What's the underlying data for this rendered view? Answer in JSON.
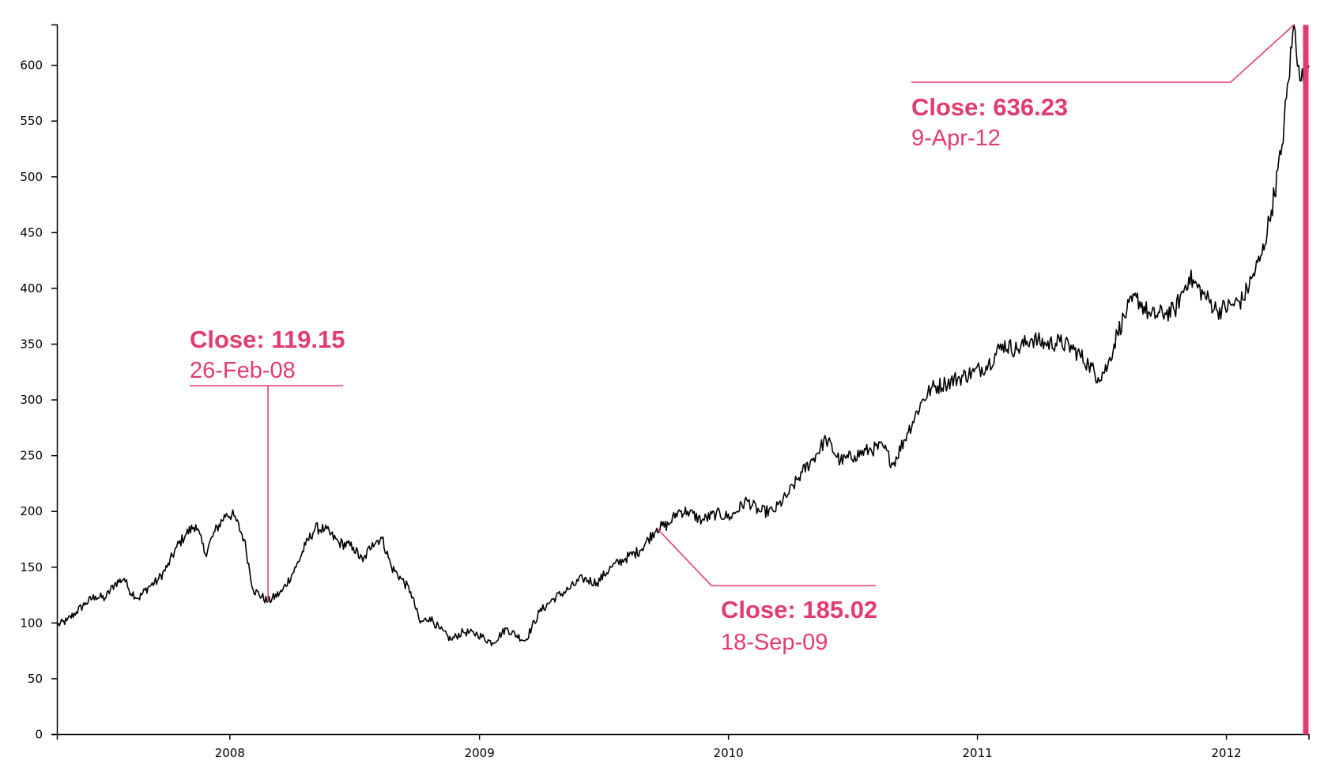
{
  "chart_data": {
    "type": "line",
    "title": "",
    "xlabel": "",
    "ylabel": "",
    "ylim": [
      0,
      636.23
    ],
    "xlim": [
      "2007-04-23",
      "2012-05-01"
    ],
    "grid": false,
    "y_ticks": [
      "0",
      "50",
      "100",
      "150",
      "200",
      "250",
      "300",
      "350",
      "400",
      "450",
      "500",
      "550",
      "600"
    ],
    "x_ticks": [
      {
        "date": "2008-01-01",
        "label": "2008"
      },
      {
        "date": "2009-01-01",
        "label": "2009"
      },
      {
        "date": "2010-01-01",
        "label": "2010"
      },
      {
        "date": "2011-01-01",
        "label": "2011"
      },
      {
        "date": "2012-01-01",
        "label": "2012"
      }
    ],
    "series": [
      {
        "color": "#000000",
        "x": [
          "2007-04-23",
          "2007-05-07",
          "2007-05-21",
          "2007-06-04",
          "2007-06-18",
          "2007-07-02",
          "2007-07-16",
          "2007-07-30",
          "2007-08-06",
          "2007-08-20",
          "2007-09-03",
          "2007-09-17",
          "2007-10-01",
          "2007-10-15",
          "2007-10-29",
          "2007-11-12",
          "2007-11-26",
          "2007-12-10",
          "2007-12-27",
          "2008-01-07",
          "2008-01-22",
          "2008-02-04",
          "2008-02-26",
          "2008-03-17",
          "2008-04-07",
          "2008-04-21",
          "2008-05-05",
          "2008-05-19",
          "2008-06-09",
          "2008-06-30",
          "2008-07-14",
          "2008-07-28",
          "2008-08-11",
          "2008-08-25",
          "2008-09-08",
          "2008-09-22",
          "2008-10-06",
          "2008-10-20",
          "2008-11-03",
          "2008-11-20",
          "2008-12-08",
          "2008-12-29",
          "2009-01-20",
          "2009-02-09",
          "2009-03-09",
          "2009-03-30",
          "2009-04-20",
          "2009-05-11",
          "2009-06-01",
          "2009-06-22",
          "2009-07-13",
          "2009-08-03",
          "2009-08-24",
          "2009-09-18",
          "2009-10-05",
          "2009-10-19",
          "2009-11-02",
          "2009-11-23",
          "2009-12-14",
          "2010-01-04",
          "2010-01-28",
          "2010-02-15",
          "2010-03-08",
          "2010-03-29",
          "2010-04-19",
          "2010-05-06",
          "2010-05-24",
          "2010-06-14",
          "2010-07-05",
          "2010-07-26",
          "2010-08-16",
          "2010-08-30",
          "2010-09-20",
          "2010-10-11",
          "2010-10-25",
          "2010-11-15",
          "2010-12-06",
          "2010-12-27",
          "2011-01-17",
          "2011-02-07",
          "2011-02-28",
          "2011-03-21",
          "2011-04-11",
          "2011-05-02",
          "2011-05-23",
          "2011-06-13",
          "2011-06-27",
          "2011-07-11",
          "2011-07-25",
          "2011-08-08",
          "2011-08-22",
          "2011-09-12",
          "2011-10-03",
          "2011-10-17",
          "2011-11-07",
          "2011-11-28",
          "2011-12-19",
          "2012-01-09",
          "2012-01-25",
          "2012-02-08",
          "2012-02-22",
          "2012-03-07",
          "2012-03-21",
          "2012-04-09",
          "2012-04-16",
          "2012-04-23",
          "2012-04-27",
          "2012-05-01"
        ],
        "y": [
          98,
          102,
          110,
          118,
          124,
          122,
          135,
          140,
          130,
          122,
          132,
          138,
          150,
          168,
          180,
          188,
          162,
          182,
          198,
          196,
          175,
          130,
          119.15,
          128,
          150,
          170,
          185,
          184,
          172,
          168,
          155,
          172,
          176,
          150,
          140,
          128,
          100,
          105,
          95,
          85,
          92,
          90,
          82,
          95,
          84,
          110,
          122,
          130,
          140,
          136,
          150,
          158,
          165,
          185.02,
          188,
          200,
          200,
          192,
          198,
          195,
          210,
          200,
          200,
          215,
          235,
          248,
          265,
          245,
          250,
          255,
          258,
          242,
          270,
          298,
          310,
          315,
          320,
          325,
          332,
          350,
          345,
          355,
          350,
          352,
          345,
          332,
          320,
          330,
          360,
          380,
          392,
          375,
          378,
          380,
          410,
          395,
          380,
          385,
          390,
          410,
          430,
          470,
          520,
          636.23,
          600,
          585,
          560,
          600
        ]
      }
    ],
    "annotations": [
      {
        "close_label": "Close: 119.15",
        "date_label": "26-Feb-08",
        "x": "2008-02-26",
        "y": 119.15
      },
      {
        "close_label": "Close: 185.02",
        "date_label": "18-Sep-09",
        "x": "2009-09-18",
        "y": 185.02
      },
      {
        "close_label": "Close: 636.23",
        "date_label": "9-Apr-12",
        "x": "2012-04-09",
        "y": 636.23
      }
    ],
    "accent_color": "#e23c6e",
    "cursor_date": "2012-05-01"
  }
}
